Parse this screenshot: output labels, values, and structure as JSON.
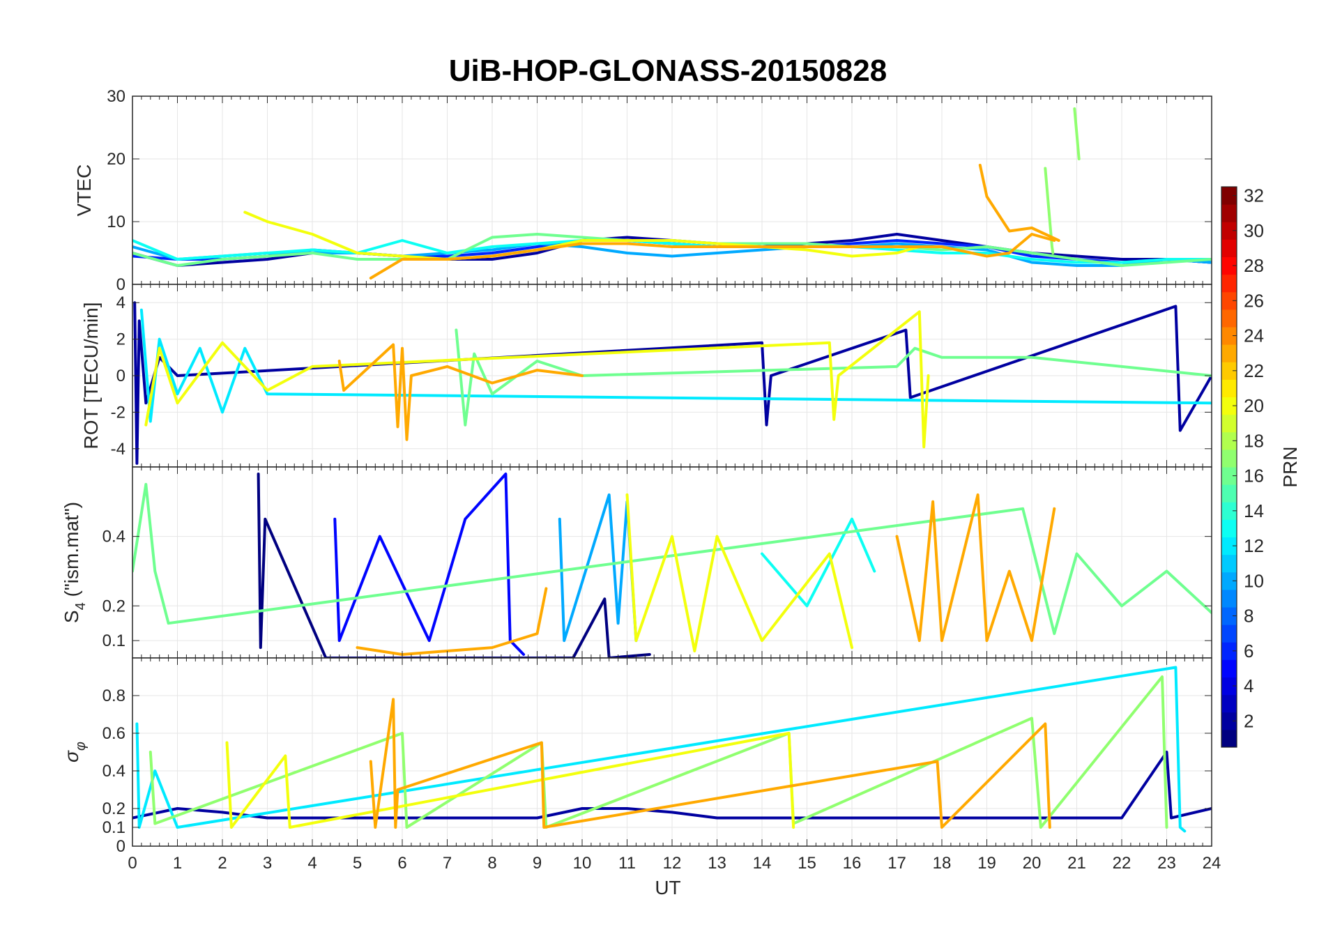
{
  "figure": {
    "title": "UiB-HOP-GLONASS-20150828",
    "xlabel": "UT"
  },
  "chart_data": [
    {
      "type": "line",
      "panel": "vtec",
      "ylabel": "VTEC",
      "xlim": [
        0,
        24
      ],
      "ylim": [
        0,
        30
      ],
      "xticks": [
        0,
        1,
        2,
        3,
        4,
        5,
        6,
        7,
        8,
        9,
        10,
        11,
        12,
        13,
        14,
        15,
        16,
        17,
        18,
        19,
        20,
        21,
        22,
        23,
        24
      ],
      "yticks": [
        0,
        10,
        20,
        30
      ],
      "grid": true,
      "series": [
        {
          "prn": 2,
          "x": [
            0,
            1,
            2,
            3,
            4,
            5,
            6,
            7,
            8,
            9,
            10,
            11,
            12,
            13,
            14,
            15,
            16,
            17,
            18,
            19,
            20,
            21,
            22,
            23,
            24
          ],
          "y": [
            5,
            3,
            3.5,
            4,
            5,
            5,
            4.5,
            4,
            4,
            5,
            7,
            7.5,
            7,
            6.5,
            6,
            6.5,
            7,
            8,
            7,
            6,
            5,
            4.5,
            4,
            4,
            3.5
          ]
        },
        {
          "prn": 6,
          "x": [
            0,
            1,
            2,
            3,
            4,
            5,
            6,
            7,
            8,
            9,
            10,
            11,
            12,
            13,
            14,
            15,
            16,
            17,
            18,
            19,
            20,
            21,
            22,
            23,
            24
          ],
          "y": [
            4.5,
            4,
            4,
            4.5,
            5.5,
            5,
            4.5,
            4.5,
            5,
            6,
            7,
            7,
            6.5,
            6,
            6,
            6,
            6.5,
            7,
            6.5,
            6,
            4.5,
            4,
            3.5,
            4,
            3.5
          ]
        },
        {
          "prn": 10,
          "x": [
            0,
            1,
            2,
            3,
            4,
            5,
            6,
            7,
            8,
            9,
            10,
            11,
            12,
            13,
            14,
            15,
            16,
            17,
            18,
            19,
            20,
            21,
            22,
            23,
            24
          ],
          "y": [
            6,
            4,
            4.5,
            5,
            5,
            5,
            4.5,
            5,
            5.5,
            6.5,
            6,
            5,
            4.5,
            5,
            5.5,
            6,
            6,
            6.5,
            6,
            5.5,
            3.5,
            3,
            3,
            4,
            3.5
          ]
        },
        {
          "prn": 13,
          "x": [
            0,
            1,
            2,
            3,
            4,
            5,
            6,
            7,
            8,
            9,
            10,
            11,
            12,
            13,
            14,
            15,
            16,
            17,
            18,
            19,
            20,
            21,
            22,
            23,
            24
          ],
          "y": [
            7,
            4,
            4.5,
            5,
            5.5,
            5,
            7,
            5,
            6,
            6.5,
            7,
            7,
            6.5,
            6,
            6,
            6,
            6,
            5.5,
            5,
            5,
            4,
            3.5,
            3.5,
            4,
            4
          ]
        },
        {
          "prn": 16,
          "x": [
            0,
            1,
            2,
            3,
            4,
            5,
            6,
            7,
            8,
            9,
            10,
            11,
            12,
            13,
            14,
            15,
            16,
            17,
            18,
            19,
            20,
            21,
            22,
            23,
            24
          ],
          "y": [
            5,
            3,
            4,
            4.5,
            5,
            4,
            4,
            4,
            7.5,
            8,
            7.5,
            7,
            7,
            6.5,
            6.5,
            6.5,
            6,
            6,
            5.5,
            6,
            5,
            4,
            3,
            3.5,
            4
          ]
        },
        {
          "prn": 17,
          "x": [
            20.3,
            20.45,
            20.47
          ],
          "y": [
            18.5,
            6,
            5
          ]
        },
        {
          "prn": 17,
          "x": [
            20.95,
            21.05
          ],
          "y": [
            28,
            20
          ]
        },
        {
          "prn": 20,
          "x": [
            2.5,
            3,
            3.5,
            4,
            5,
            6,
            7,
            8,
            9,
            10,
            11,
            12,
            13,
            14,
            15,
            16,
            17,
            17.5
          ],
          "y": [
            11.5,
            10,
            9,
            8,
            5,
            4.5,
            4,
            4.5,
            5.5,
            7,
            7,
            7,
            6.5,
            6,
            5.5,
            4.5,
            5,
            6
          ]
        },
        {
          "prn": 23,
          "x": [
            5.3,
            6,
            7,
            8,
            9,
            10,
            11,
            12,
            13,
            14,
            15,
            16,
            17,
            18,
            19,
            19.5,
            20,
            20.5
          ],
          "y": [
            1,
            4,
            4,
            4.5,
            5.5,
            6.5,
            6.5,
            6,
            6,
            6,
            6,
            6,
            6,
            6,
            4.5,
            5,
            8,
            7
          ]
        },
        {
          "prn": 23,
          "x": [
            18.85,
            19,
            19.5,
            20,
            20.6
          ],
          "y": [
            19,
            14,
            8.5,
            9,
            7
          ]
        }
      ]
    },
    {
      "type": "line",
      "panel": "rot",
      "ylabel": "ROT [TECU/min]",
      "xlim": [
        0,
        24
      ],
      "ylim": [
        -5,
        5
      ],
      "yticks": [
        -4,
        -2,
        0,
        2,
        4
      ],
      "grid": true,
      "series": [
        {
          "prn": 2,
          "x": [
            0.05,
            0.1,
            0.15,
            0.3,
            0.6,
            1,
            14,
            14.1,
            14.2,
            17.2,
            17.3,
            23.2,
            23.3,
            24
          ],
          "y": [
            4,
            -4.8,
            3,
            -1.5,
            1,
            0,
            1.8,
            -2.7,
            0,
            2.5,
            -1.2,
            3.8,
            -3,
            0
          ]
        },
        {
          "prn": 12,
          "x": [
            0.2,
            0.4,
            0.6,
            1,
            1.5,
            2,
            2.5,
            3,
            24
          ],
          "y": [
            3.6,
            -2.5,
            2,
            -1,
            1.5,
            -2,
            1.5,
            -1,
            -1.5
          ]
        },
        {
          "prn": 16,
          "x": [
            7.2,
            7.4,
            7.6,
            8,
            9,
            10,
            17,
            17.4,
            18,
            20,
            24
          ],
          "y": [
            2.5,
            -2.7,
            1.2,
            -1,
            0.8,
            0,
            0.5,
            1.5,
            1,
            1,
            0
          ]
        },
        {
          "prn": 20,
          "x": [
            0.3,
            0.6,
            1,
            2,
            3,
            4,
            15.5,
            15.6,
            15.7,
            17.5,
            17.6,
            17.7
          ],
          "y": [
            -2.7,
            1.5,
            -1.5,
            1.8,
            -0.8,
            0.5,
            1.8,
            -2.4,
            0,
            3.5,
            -3.9,
            0
          ]
        },
        {
          "prn": 23,
          "x": [
            4.6,
            4.7,
            5.8,
            5.9,
            6,
            6.1,
            6.2,
            7,
            8,
            9,
            10
          ],
          "y": [
            0.8,
            -0.8,
            1.7,
            -2.8,
            1.5,
            -3.5,
            0,
            0.5,
            -0.4,
            0.3,
            0
          ]
        }
      ]
    },
    {
      "type": "line",
      "panel": "s4",
      "ylabel": "S4 (\"ism.mat\")",
      "xlim": [
        0,
        24
      ],
      "ylim": [
        0.05,
        0.6
      ],
      "yticks": [
        0.1,
        0.2,
        0.4
      ],
      "grid": true,
      "series": [
        {
          "prn": 1,
          "x": [
            2.8,
            2.85,
            2.95,
            4.3,
            9.8,
            10.5,
            10.6,
            11.5
          ],
          "y": [
            0.58,
            0.08,
            0.45,
            0.05,
            0.05,
            0.22,
            0.05,
            0.06
          ]
        },
        {
          "prn": 5,
          "x": [
            4.5,
            4.6,
            5.5,
            6.6,
            7.4,
            8.3,
            8.4,
            8.7
          ],
          "y": [
            0.45,
            0.1,
            0.4,
            0.1,
            0.45,
            0.58,
            0.1,
            0.06
          ]
        },
        {
          "prn": 10,
          "x": [
            9.5,
            9.6,
            10.6,
            10.8,
            11,
            11.2
          ],
          "y": [
            0.45,
            0.1,
            0.52,
            0.15,
            0.5,
            0.1
          ]
        },
        {
          "prn": 13,
          "x": [
            14,
            15,
            16,
            16.5
          ],
          "y": [
            0.35,
            0.2,
            0.45,
            0.3
          ]
        },
        {
          "prn": 16,
          "x": [
            0,
            0.3,
            0.5,
            0.8,
            19.8,
            20.5,
            21,
            22,
            23,
            24
          ],
          "y": [
            0.3,
            0.55,
            0.3,
            0.15,
            0.48,
            0.12,
            0.35,
            0.2,
            0.3,
            0.18
          ]
        },
        {
          "prn": 20,
          "x": [
            11,
            11.2,
            12,
            12.5,
            13,
            14,
            15.5,
            16
          ],
          "y": [
            0.52,
            0.1,
            0.4,
            0.07,
            0.4,
            0.1,
            0.35,
            0.08
          ]
        },
        {
          "prn": 23,
          "x": [
            17,
            17.5,
            17.8,
            18,
            18.8,
            19,
            19.5,
            20,
            20.5
          ],
          "y": [
            0.4,
            0.1,
            0.5,
            0.1,
            0.52,
            0.1,
            0.3,
            0.1,
            0.48
          ]
        },
        {
          "prn": 23,
          "x": [
            5,
            6,
            7,
            8,
            9,
            9.2
          ],
          "y": [
            0.08,
            0.06,
            0.07,
            0.08,
            0.12,
            0.25
          ]
        }
      ]
    },
    {
      "type": "line",
      "panel": "sigma_phi",
      "ylabel": "σ_φ",
      "xlim": [
        0,
        24
      ],
      "ylim": [
        0,
        1
      ],
      "yticks": [
        0,
        0.1,
        0.2,
        0.4,
        0.6,
        0.8
      ],
      "grid": true,
      "series": [
        {
          "prn": 2,
          "x": [
            0,
            1,
            2,
            3,
            9,
            10,
            11,
            12,
            13,
            22,
            23,
            23.1,
            24
          ],
          "y": [
            0.15,
            0.2,
            0.18,
            0.15,
            0.15,
            0.2,
            0.2,
            0.18,
            0.15,
            0.15,
            0.5,
            0.15,
            0.2
          ]
        },
        {
          "prn": 12,
          "x": [
            0.1,
            0.15,
            0.5,
            1,
            23.2,
            23.3,
            23.4
          ],
          "y": [
            0.65,
            0.1,
            0.4,
            0.1,
            0.95,
            0.1,
            0.08
          ]
        },
        {
          "prn": 17,
          "x": [
            0.4,
            0.5,
            6,
            6.1,
            9.1,
            9.2,
            14.6,
            14.7,
            20,
            20.2,
            22.9,
            23
          ],
          "y": [
            0.5,
            0.12,
            0.6,
            0.1,
            0.55,
            0.1,
            0.6,
            0.12,
            0.68,
            0.1,
            0.9,
            0.1
          ]
        },
        {
          "prn": 20,
          "x": [
            2.1,
            2.2,
            3.4,
            3.5,
            14.6,
            14.7
          ],
          "y": [
            0.55,
            0.1,
            0.48,
            0.1,
            0.6,
            0.1
          ]
        },
        {
          "prn": 23,
          "x": [
            5.3,
            5.4,
            5.8,
            5.85,
            5.9,
            9.1,
            9.15,
            17.9,
            18,
            20.3,
            20.4
          ],
          "y": [
            0.45,
            0.1,
            0.78,
            0.1,
            0.3,
            0.55,
            0.1,
            0.45,
            0.1,
            0.65,
            0.1
          ]
        }
      ]
    }
  ],
  "colorbar": {
    "label": "PRN",
    "min": 1,
    "max": 32,
    "ticks": [
      2,
      4,
      6,
      8,
      10,
      12,
      14,
      16,
      18,
      20,
      22,
      24,
      26,
      28,
      30,
      32
    ],
    "colormap": "jet"
  }
}
